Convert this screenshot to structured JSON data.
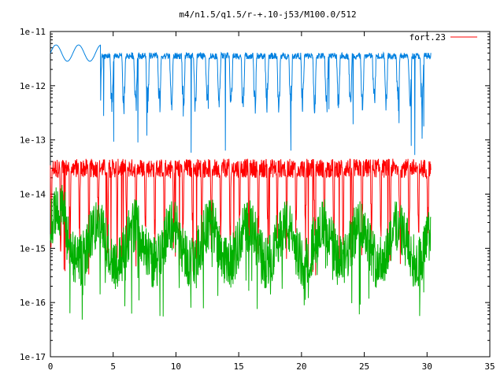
{
  "chart_data": {
    "type": "line",
    "title": "m4/n1.5/q1.5/r-+.10-j53/M100.0/512",
    "xlabel": "",
    "ylabel": "",
    "xlim": [
      0,
      35
    ],
    "ylim": [
      1e-17,
      1e-11
    ],
    "y_log_scale": true,
    "grid": false,
    "legend_position": "top-right",
    "x_ticks": [
      "0",
      "5",
      "10",
      "15",
      "20",
      "25",
      "30",
      "35"
    ],
    "y_ticks": [
      "1e-17",
      "1e-16",
      "1e-15",
      "1e-14",
      "1e-13",
      "1e-12",
      "1e-11"
    ],
    "series": [
      {
        "name": "fort.23",
        "color": "#ff0000",
        "x_range": [
          0,
          30.3
        ],
        "upper_level": 3e-14,
        "dip_minima": [
          1e-15,
          3e-15
        ],
        "deepest_dip": 3e-16
      },
      {
        "color": "#00b000",
        "x_range": [
          0,
          30.3
        ],
        "upper_level": 4e-15,
        "lower_level": 2e-16,
        "deepest_dip": 4e-17
      },
      {
        "color": "#0080e0",
        "x_range": [
          0,
          30.3
        ],
        "upper_level": 5e-12,
        "dip_minima": [
          1e-12,
          2e-13
        ],
        "deepest_dip": 5e-14
      }
    ]
  }
}
